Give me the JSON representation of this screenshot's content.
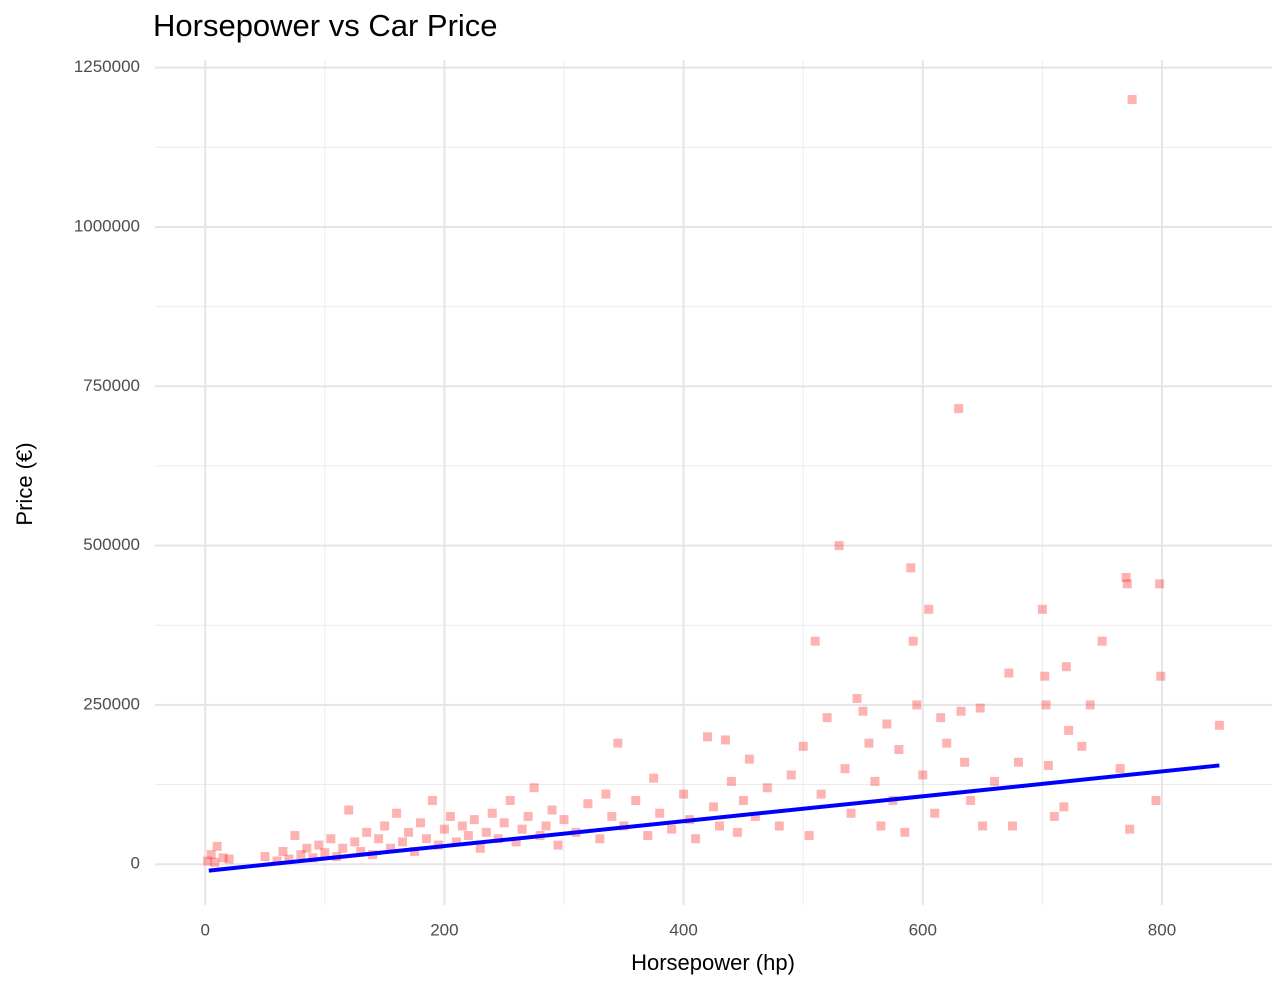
{
  "chart_data": {
    "type": "scatter",
    "title": "Horsepower vs Car Price",
    "x_label": "Horsepower (hp)",
    "y_label": "Price (€)",
    "xlim": [
      -42,
      892
    ],
    "ylim": [
      -64000,
      1262000
    ],
    "xticks": [
      0,
      200,
      400,
      600,
      800
    ],
    "yticks": [
      0,
      250000,
      500000,
      750000,
      1000000,
      1250000
    ],
    "minor_xticks": [
      100,
      300,
      500,
      700
    ],
    "minor_yticks": [
      125000,
      375000,
      625000,
      875000,
      1125000
    ],
    "grid": true,
    "point_opacity": 0.3,
    "series": [
      {
        "color": "#ff0000",
        "x": [
          2,
          5,
          8,
          10,
          15,
          20,
          50,
          60,
          65,
          70,
          75,
          80,
          85,
          90,
          95,
          100,
          105,
          110,
          115,
          120,
          125,
          130,
          135,
          140,
          145,
          150,
          155,
          160,
          165,
          170,
          175,
          180,
          185,
          190,
          195,
          200,
          205,
          210,
          215,
          220,
          225,
          230,
          235,
          240,
          245,
          250,
          255,
          260,
          265,
          270,
          275,
          280,
          285,
          290,
          295,
          300,
          310,
          320,
          330,
          335,
          340,
          345,
          350,
          360,
          370,
          375,
          380,
          390,
          400,
          405,
          410,
          420,
          425,
          430,
          435,
          440,
          445,
          450,
          455,
          460,
          470,
          480,
          490,
          500,
          505,
          510,
          515,
          520,
          530,
          535,
          540,
          545,
          550,
          555,
          560,
          565,
          570,
          575,
          580,
          585,
          590,
          592,
          595,
          600,
          605,
          610,
          615,
          620,
          630,
          632,
          635,
          640,
          648,
          650,
          660,
          672,
          675,
          680,
          700,
          702,
          703,
          705,
          710,
          718,
          720,
          722,
          733,
          740,
          750,
          765,
          770,
          771,
          773,
          775,
          795,
          798,
          799,
          848
        ],
        "values": [
          5000,
          15000,
          3000,
          28000,
          10000,
          8000,
          12000,
          5000,
          20000,
          8000,
          45000,
          15000,
          25000,
          10000,
          30000,
          18000,
          40000,
          12000,
          25000,
          85000,
          35000,
          20000,
          50000,
          15000,
          40000,
          60000,
          25000,
          80000,
          35000,
          50000,
          20000,
          65000,
          40000,
          100000,
          30000,
          55000,
          75000,
          35000,
          60000,
          45000,
          70000,
          25000,
          50000,
          80000,
          40000,
          65000,
          100000,
          35000,
          55000,
          75000,
          120000,
          45000,
          60000,
          85000,
          30000,
          70000,
          50000,
          95000,
          40000,
          110000,
          75000,
          190000,
          60000,
          100000,
          45000,
          135000,
          80000,
          55000,
          110000,
          70000,
          40000,
          200000,
          90000,
          60000,
          195000,
          130000,
          50000,
          100000,
          165000,
          75000,
          120000,
          60000,
          140000,
          185000,
          45000,
          350000,
          110000,
          230000,
          500000,
          150000,
          80000,
          260000,
          240000,
          190000,
          130000,
          60000,
          220000,
          100000,
          180000,
          50000,
          465000,
          350000,
          250000,
          140000,
          400000,
          80000,
          230000,
          190000,
          715000,
          240000,
          160000,
          100000,
          245000,
          60000,
          130000,
          300000,
          60000,
          160000,
          400000,
          295000,
          250000,
          155000,
          75000,
          90000,
          310000,
          210000,
          185000,
          250000,
          350000,
          150000,
          450000,
          440000,
          55000,
          1200000,
          100000,
          440000,
          295000,
          218000
        ]
      }
    ],
    "trend_line": {
      "color": "#0000ff",
      "x": [
        3,
        848
      ],
      "values": [
        -10000,
        155000
      ]
    }
  }
}
